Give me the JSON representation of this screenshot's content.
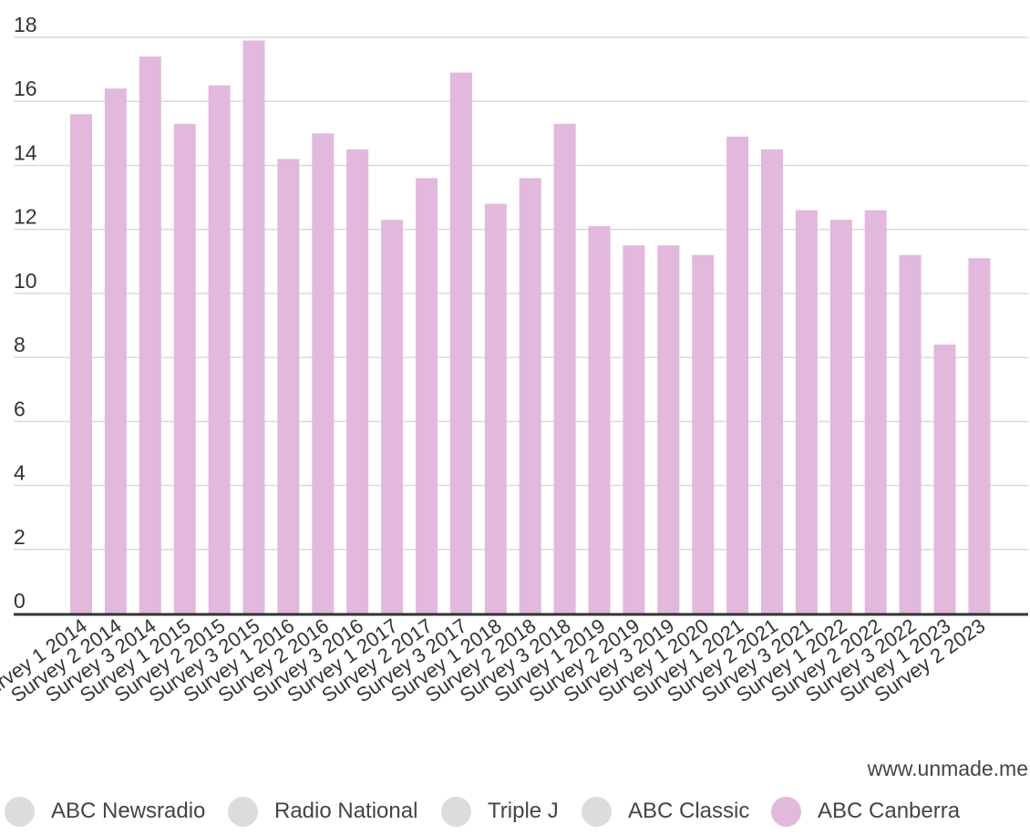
{
  "credit": "www.unmade.me",
  "legend": [
    {
      "label": "ABC Newsradio",
      "color": "#dcdcdc",
      "active": false
    },
    {
      "label": "Radio National",
      "color": "#dcdcdc",
      "active": false
    },
    {
      "label": "Triple J",
      "color": "#dcdcdc",
      "active": false
    },
    {
      "label": "ABC Classic",
      "color": "#dcdcdc",
      "active": false
    },
    {
      "label": "ABC Canberra",
      "color": "#e2b8dc",
      "active": true
    }
  ],
  "chart_data": {
    "type": "bar",
    "categories": [
      "Survey 1 2014",
      "Survey 2 2014",
      "Survey 3 2014",
      "Survey 1 2015",
      "Survey 2 2015",
      "Survey 3 2015",
      "Survey 1 2016",
      "Survey 2 2016",
      "Survey 3 2016",
      "Survey 1 2017",
      "Survey 2 2017",
      "Survey 3 2017",
      "Survey 1 2018",
      "Survey 2 2018",
      "Survey 3 2018",
      "Survey 1 2019",
      "Survey 2 2019",
      "Survey 3 2019",
      "Survey 1 2020",
      "Survey 1 2021",
      "Survey 2 2021",
      "Survey 3 2021",
      "Survey 1 2022",
      "Survey 2 2022",
      "Survey 3 2022",
      "Survey 1 2023",
      "Survey 2 2023"
    ],
    "series": [
      {
        "name": "ABC Canberra",
        "color": "#e2b8dc",
        "values": [
          15.6,
          16.4,
          17.4,
          15.3,
          16.5,
          17.9,
          14.2,
          15.0,
          14.5,
          12.3,
          13.6,
          16.9,
          12.8,
          13.6,
          15.3,
          12.1,
          11.5,
          11.5,
          11.2,
          14.9,
          14.5,
          12.6,
          12.3,
          12.6,
          11.2,
          8.4,
          11.1
        ]
      }
    ],
    "ylim": [
      0,
      18
    ],
    "yticks": [
      0,
      2,
      4,
      6,
      8,
      10,
      12,
      14,
      16,
      18
    ],
    "grid": true,
    "legend_position": "bottom-left"
  }
}
